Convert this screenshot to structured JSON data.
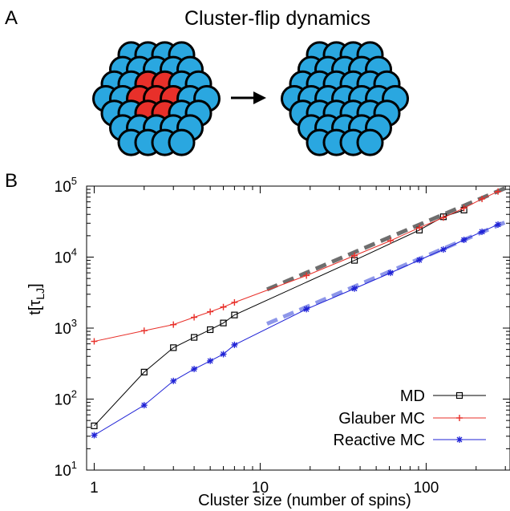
{
  "panel_a": {
    "label": "A",
    "title": "Cluster-flip dynamics",
    "colors": {
      "spin": "#2aa7e0",
      "flipped": "#e8302a",
      "outline": "#000000"
    }
  },
  "panel_b": {
    "label": "B"
  },
  "chart_data": {
    "type": "line",
    "title": "",
    "xlabel": "Cluster size (number of spins)",
    "ylabel": "t[τ_LJ]",
    "xscale": "log",
    "yscale": "log",
    "xlim": [
      0.9,
      320
    ],
    "ylim": [
      10,
      100000
    ],
    "xticks": [
      1,
      10,
      100
    ],
    "xtick_labels": [
      "1",
      "10",
      "100"
    ],
    "yticks": [
      10,
      100,
      1000,
      10000,
      100000
    ],
    "ytick_labels": [
      {
        "base": "10",
        "exp": "1"
      },
      {
        "base": "10",
        "exp": "2"
      },
      {
        "base": "10",
        "exp": "3"
      },
      {
        "base": "10",
        "exp": "4"
      },
      {
        "base": "10",
        "exp": "5"
      }
    ],
    "grid": false,
    "legend_position": "bottom-right",
    "series": [
      {
        "name": "MD",
        "color": "#000000",
        "marker": "square",
        "x": [
          1,
          2,
          3,
          4,
          5,
          6,
          7,
          37,
          91,
          127,
          169
        ],
        "y": [
          42,
          240,
          530,
          740,
          950,
          1180,
          1530,
          9000,
          24000,
          37000,
          46000
        ]
      },
      {
        "name": "Glauber MC",
        "color": "#e8302a",
        "marker": "plus",
        "x": [
          1,
          2,
          3,
          4,
          5,
          6,
          7,
          19,
          37,
          61,
          91,
          127,
          169,
          217,
          271
        ],
        "y": [
          650,
          920,
          1120,
          1420,
          1700,
          1980,
          2300,
          5500,
          10500,
          17000,
          26000,
          36000,
          49000,
          66000,
          84000
        ]
      },
      {
        "name": "Reactive MC",
        "color": "#1f22d6",
        "marker": "star",
        "x": [
          1,
          2,
          3,
          4,
          5,
          6,
          7,
          19,
          37,
          61,
          91,
          127,
          169,
          217,
          271
        ],
        "y": [
          31,
          82,
          180,
          265,
          345,
          430,
          580,
          1850,
          3600,
          6000,
          9100,
          12800,
          17500,
          22800,
          28800
        ]
      }
    ],
    "fits": [
      {
        "color": "#555555",
        "x": [
          11,
          320
        ],
        "y": [
          3500,
          100000
        ]
      },
      {
        "color": "#7b86e6",
        "x": [
          11,
          320
        ],
        "y": [
          1150,
          33000
        ]
      }
    ]
  }
}
